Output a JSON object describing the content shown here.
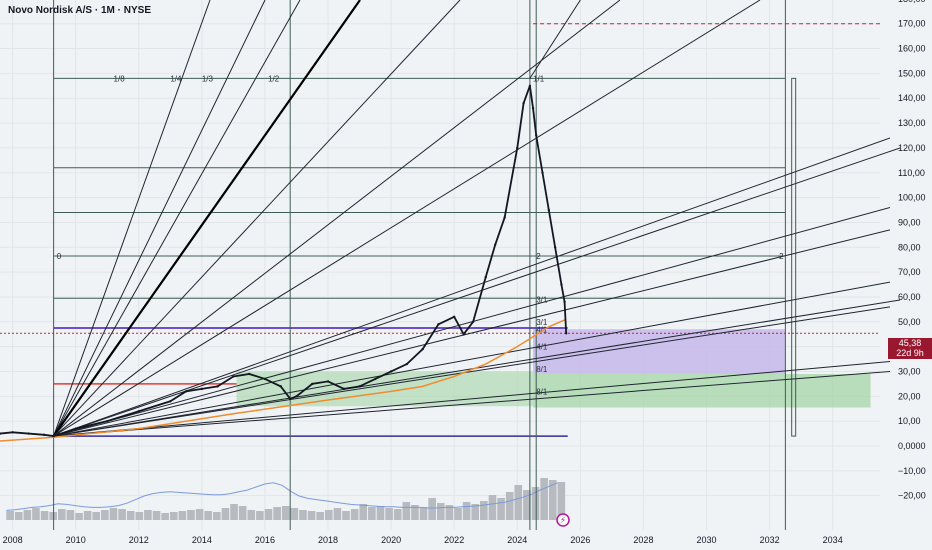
{
  "header": {
    "title": "Novo Nordisk A/S · 1M · NYSE"
  },
  "colors": {
    "background": "#f0f3f5",
    "grid": "#e2e5e8",
    "gann_line": "#1f2430",
    "fan_bold": "#000000",
    "box_line": "#3f5c55",
    "sma": "#f08c2c",
    "price_dotted": "#c81e3c",
    "purple_band": "#6a4fd0",
    "red_band": "#e53935",
    "green_zone": "#a5d6a7",
    "purple_zone": "#c5b7ea",
    "price_label": "#9a1730",
    "volume": "#b7babf",
    "volume_ma": "#7a9ae0",
    "lightning": "#b5179e"
  },
  "price_labels": {
    "price": "45,38",
    "countdown": "22d 9h"
  },
  "chart_data": {
    "type": "line",
    "title": "Novo Nordisk A/S · 1M · NYSE",
    "xlabel": "",
    "ylabel": "",
    "xlim": [
      2007.6,
      2035.5
    ],
    "ylim": [
      -24,
      182
    ],
    "grid": true,
    "x_ticks": [
      "2008",
      "2010",
      "2012",
      "2014",
      "2016",
      "2018",
      "2020",
      "2022",
      "2024",
      "2026",
      "2028",
      "2030",
      "2032",
      "2034"
    ],
    "y_ticks": [
      "180,00",
      "170,00",
      "160,00",
      "150,00",
      "140,00",
      "130,00",
      "120,00",
      "110,00",
      "100,00",
      "90,00",
      "80,00",
      "70,00",
      "60,00",
      "50,00",
      "40,00",
      "30,00",
      "20,00",
      "10,00",
      "0,0000",
      "−10,00",
      "−20,00"
    ],
    "series": [
      {
        "x": [
          2007.6,
          2008,
          2008.5,
          2009,
          2009.3,
          2010,
          2011,
          2012,
          2013,
          2013.5,
          2014,
          2014.5,
          2015,
          2015.5,
          2016,
          2016.5,
          2016.8,
          2017,
          2017.5,
          2018,
          2018.5,
          2019,
          2019.5,
          2020,
          2020.5,
          2021,
          2021.5,
          2022,
          2022.3,
          2022.6,
          2023,
          2023.3,
          2023.6,
          2024,
          2024.2,
          2024.4,
          2024.5,
          2024.6,
          2024.8,
          2025,
          2025.2,
          2025.4,
          2025.5,
          2025.55
        ],
        "values": [
          5,
          5.5,
          5,
          4.5,
          4,
          7,
          10,
          14,
          18,
          22,
          23,
          24,
          28,
          29,
          27,
          24,
          19,
          20,
          25,
          26,
          23,
          24,
          27,
          30,
          33,
          39,
          49,
          52,
          45,
          50,
          68,
          81,
          92,
          120,
          138,
          145,
          136,
          125,
          110,
          95,
          80,
          65,
          58,
          45.38
        ]
      },
      {
        "x": [
          2007.6,
          2009.3,
          2012,
          2015,
          2018,
          2020,
          2021,
          2022,
          2023,
          2024,
          2024.5,
          2025,
          2025.55
        ],
        "values": [
          2,
          3.5,
          7,
          13,
          18.5,
          22,
          24,
          28,
          33,
          40,
          44,
          48,
          51
        ]
      }
    ],
    "last_price": 45.38,
    "countdown": "22d 9h",
    "gann_labels": [
      "1/8",
      "1/4",
      "1/3",
      "1/2",
      "1/1",
      "0",
      "2",
      "2",
      "3/1",
      "3/1",
      "4/1",
      "4/1",
      "8/1",
      "8/1"
    ],
    "levels": [
      4,
      25,
      47,
      148,
      170
    ],
    "box_levels": [
      4,
      47.5,
      59.5,
      76.5,
      94,
      112,
      148
    ],
    "volume": {
      "values": [
        9,
        8,
        10,
        12,
        9,
        8,
        11,
        10,
        7,
        9,
        8,
        10,
        12,
        11,
        9,
        8,
        10,
        9,
        7,
        8,
        9,
        10,
        11,
        9,
        8,
        12,
        16,
        14,
        10,
        9,
        11,
        13,
        14,
        12,
        10,
        9,
        8,
        10,
        12,
        9,
        11,
        16,
        13,
        14,
        12,
        11,
        18,
        15,
        13,
        22,
        17,
        15,
        12,
        18,
        16,
        19,
        25,
        22,
        28,
        35,
        30,
        33,
        42,
        40,
        38
      ],
      "ma": [
        16,
        17,
        19,
        21,
        22,
        24,
        27,
        26,
        24,
        22,
        21,
        21,
        22,
        24,
        28,
        34,
        40,
        44,
        46,
        47,
        46,
        45,
        44,
        43,
        42,
        42,
        44,
        47,
        50,
        55,
        60,
        62,
        58,
        48,
        40,
        36,
        34,
        32,
        30,
        28,
        26,
        25,
        24,
        23,
        22,
        22,
        21,
        21,
        21,
        20,
        20,
        21,
        21,
        22,
        23,
        24,
        26,
        28,
        30,
        34,
        38,
        43,
        50,
        56,
        62
      ]
    }
  }
}
